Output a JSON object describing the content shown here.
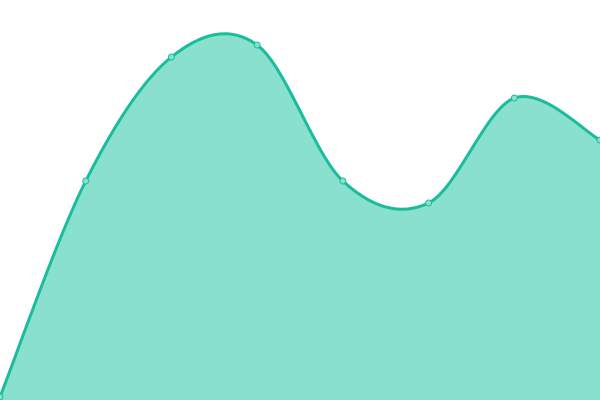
{
  "chart_data": {
    "type": "area",
    "title": "",
    "xlabel": "",
    "ylabel": "",
    "x": [
      0,
      1,
      2,
      3,
      4,
      5,
      6,
      7
    ],
    "values": [
      3,
      219,
      343,
      355,
      219,
      197,
      302,
      260
    ],
    "ylim": [
      0,
      400
    ],
    "xlim": [
      0,
      7
    ],
    "grid": false,
    "axes_visible": false,
    "smooth": true,
    "markers": true,
    "colors": {
      "line": "#1abc9c",
      "fill": "#8ae0cf",
      "marker_fill": "#8ae0cf",
      "marker_stroke": "#1abc9c"
    }
  }
}
